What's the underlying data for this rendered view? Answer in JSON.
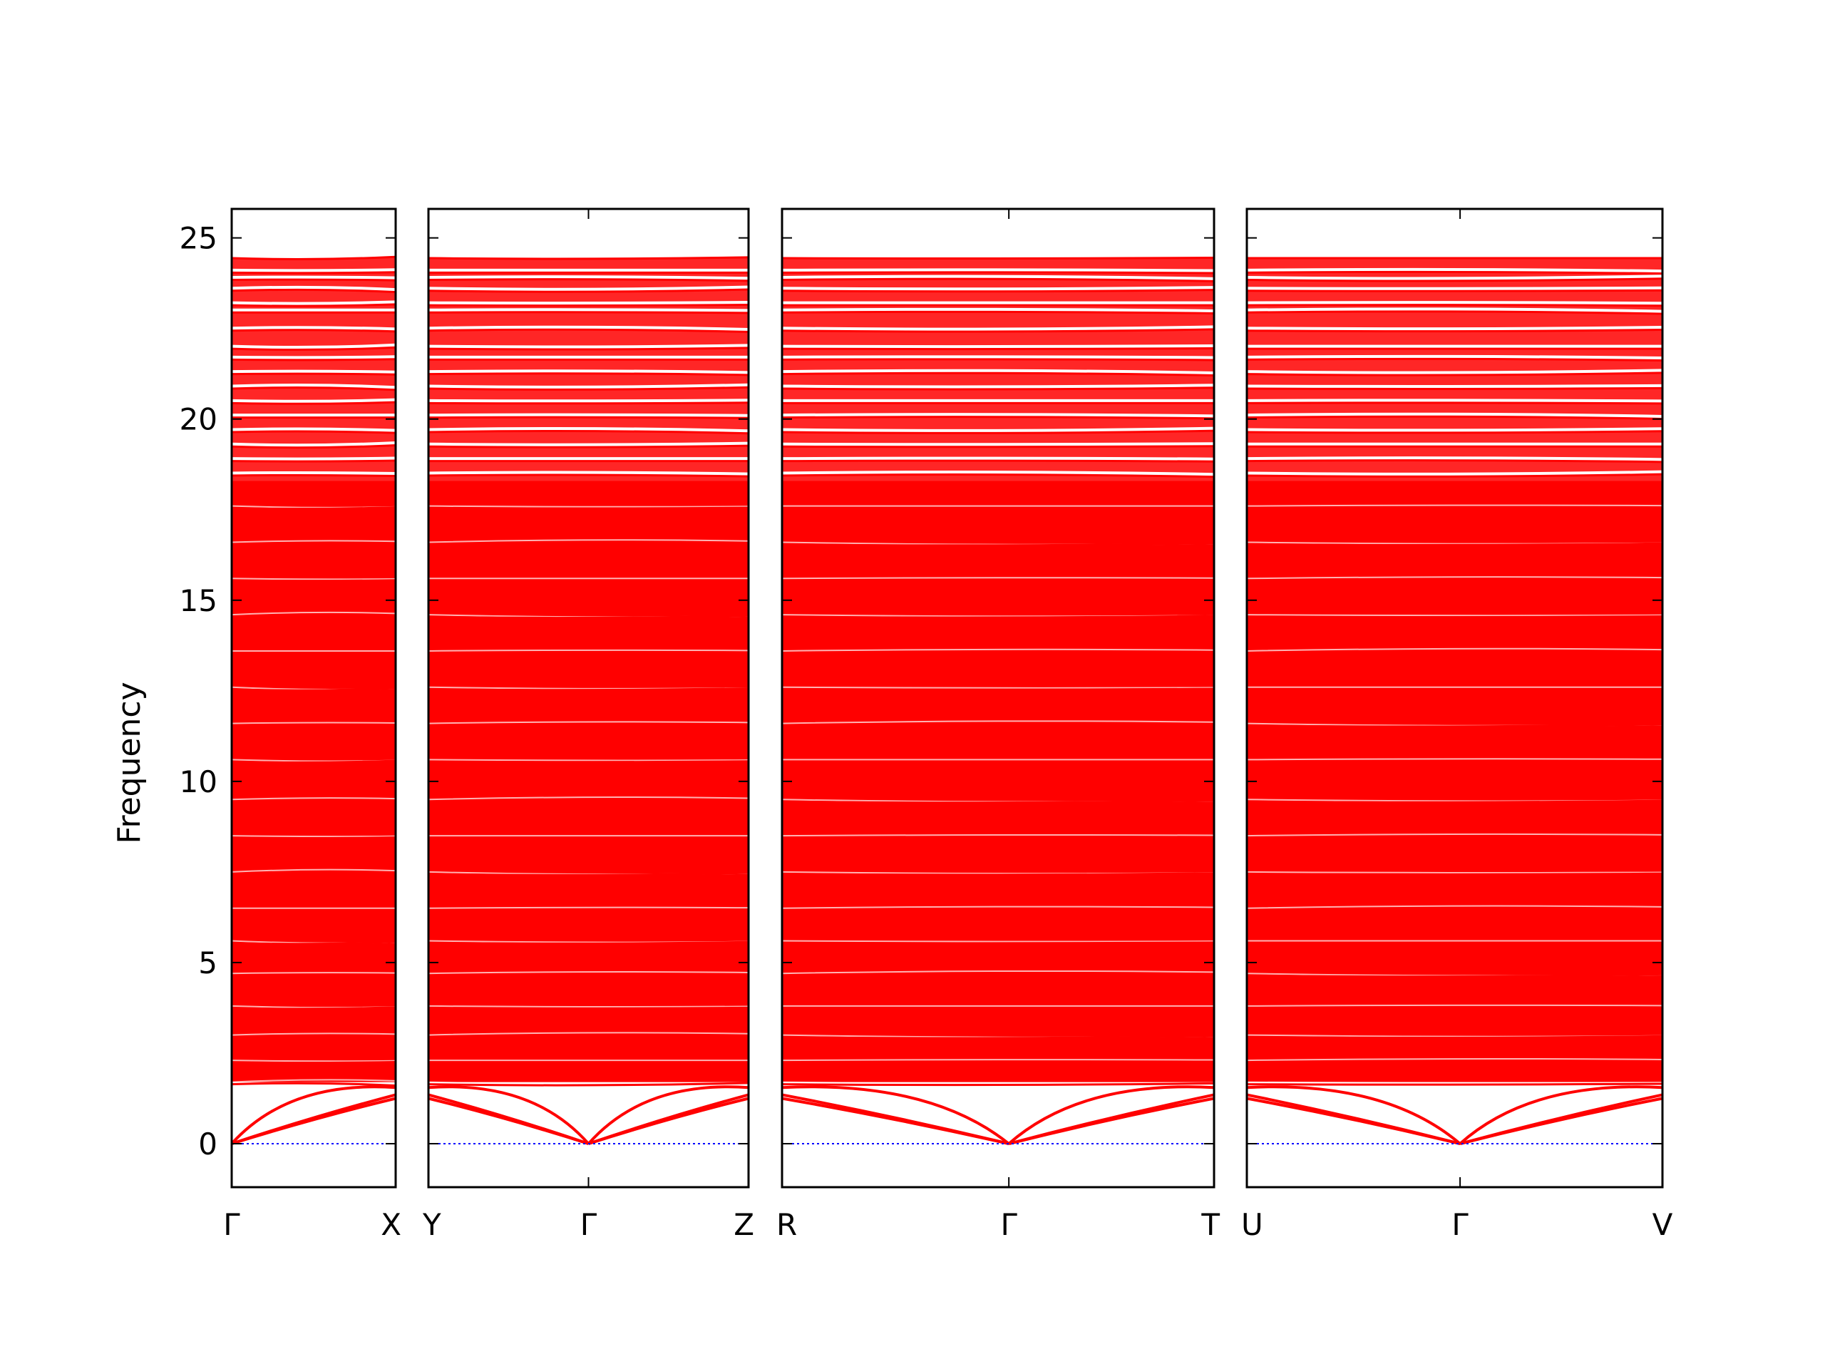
{
  "chart_data": {
    "type": "line",
    "ylabel": "Frequency",
    "ylim": [
      -1.2,
      25.8
    ],
    "yticks": [
      0,
      5,
      10,
      15,
      20,
      25
    ],
    "grid": false,
    "legend": "none",
    "band_color": "#ff0000",
    "zero_line_color": "#0000ff",
    "segments": [
      {
        "start_label": "Γ",
        "end_label": "X",
        "x_range": [
          0,
          0.45
        ],
        "high_symmetry_points": [
          {
            "label": "Γ",
            "x": 0
          },
          {
            "label": "X",
            "x": 0.45
          }
        ]
      },
      {
        "start_label": "Y",
        "mid_label": "Γ",
        "end_label": "Z",
        "x_range": [
          0,
          0.9
        ],
        "high_symmetry_points": [
          {
            "label": "Y",
            "x": 0
          },
          {
            "label": "Γ",
            "x": 0.45
          },
          {
            "label": "Z",
            "x": 0.9
          }
        ]
      },
      {
        "start_label": "R",
        "mid_label": "Γ",
        "end_label": "T",
        "x_range": [
          0,
          1.2
        ],
        "high_symmetry_points": [
          {
            "label": "R",
            "x": 0
          },
          {
            "label": "Γ",
            "x": 0.63
          },
          {
            "label": "T",
            "x": 1.2
          }
        ]
      },
      {
        "start_label": "U",
        "mid_label": "Γ",
        "end_label": "V",
        "x_range": [
          0,
          1.15
        ],
        "high_symmetry_points": [
          {
            "label": "U",
            "x": 0
          },
          {
            "label": "Γ",
            "x": 0.59
          },
          {
            "label": "V",
            "x": 1.15
          }
        ]
      }
    ],
    "acoustic_branches": {
      "gamma_value": 0,
      "zone_edge_values": [
        1.25,
        1.35,
        1.55
      ]
    },
    "optical_band": {
      "dense_range": [
        1.7,
        18.3
      ],
      "upper_range": [
        18.3,
        24.5
      ],
      "sample_band_values": [
        1.7,
        2.0,
        2.3,
        2.6,
        3.0,
        3.4,
        3.8,
        4.2,
        4.7,
        5.1,
        5.6,
        6.1,
        6.5,
        7.0,
        7.5,
        8.0,
        8.5,
        9.0,
        9.5,
        10.0,
        10.6,
        11.1,
        11.6,
        12.1,
        12.6,
        13.1,
        13.6,
        14.1,
        14.6,
        15.1,
        15.6,
        16.1,
        16.6,
        17.1,
        17.6,
        18.1,
        18.5,
        18.9,
        19.3,
        19.7,
        20.1,
        20.5,
        20.9,
        21.3,
        21.7,
        22.0,
        22.5,
        23.0,
        23.2,
        23.6,
        23.9,
        24.1,
        24.5
      ]
    }
  }
}
